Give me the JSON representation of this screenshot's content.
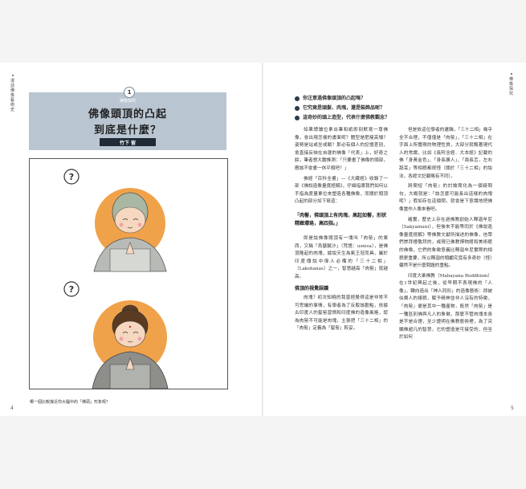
{
  "left_page": {
    "side_label": "漫話佛像藝術史",
    "page_number": "4",
    "chapter": {
      "number": "1",
      "tag": "佛像探究",
      "title_line1": "佛像頭頂的凸起",
      "title_line2": "到底是什麼？",
      "author": "竹下 留"
    },
    "caption": "哪一個比較接近你大腦中的「佛頭」形象呢？"
  },
  "right_page": {
    "side_label": "佛像探究",
    "page_number": "5",
    "bullets": [
      "你注意過佛像頭頂的凸起嗎？",
      "它究竟是頭髮、肉塊，還是裝飾品呢？",
      "這奇妙的頭上造型，代表什麼佛教觀念？"
    ],
    "col_a": {
      "p1": "如果請讀位拿出筆和紙即刻默寫一尊佛像，會出現怎樣的畫面呢？體型是肥瘦高矮？姿勢是站或坐或躺？那必有個人的記憶差別，會直接反映在自選的佛像「代表」上，好奇之餘，筆者想大膽推測：「只要畫了佛像的頭部，應該不會畫一休平頭吧？」",
      "p2": "佛經「百科全書」—《大藏經》收錄了一部《佛說造像量度經解》，仔細指導我們如何以手指為度量單位來塑造各種佛像，而關於頭頂凸起的部分如下寫道：",
      "pull": "「肉髻，佛頭頂上有肉塊，高起如髻，形狀精緻瓔珞，高四指。」",
      "p3": "即是說佛像頭頂有一塊叫「肉髻」的東西，又稱「烏瑟膩沙」（梵語：usnisa），是佛頂隆起的肉塊，據說天生為氣王冠而具，屬於印度傳說中偉人必備的「三十二相」（Lakshanas）之一，智慧越高「肉髻」就越高。",
      "subhead": "佛頂的視覺誤讀",
      "p4": "肉塊？初次知曉的我曾經覺得這是非常不可思議的事情，有學者為了反駁該觀點，依據古印度人的髮髻習慣和印度佛的造像風格，認為肉髻不可能是肉塊，主張把「三十二相」的「肉髻」定義為「髮髻」較妥。"
    },
    "col_b": {
      "p1": "但是依這位學者的邏輯，「三十二相」幾乎全不合理，不僅僅是「肉髻」，「三十二相」在字面上所體現的物理性質，大部分就甄著現代人的常識，比如《長阿含經．大本經》記載的佛「身黃金色」、「身長廣人」、「兩長舌，左右舐耳」等相貌都很怪（關於「三十二相」的說法，各經文記載略有不同）。",
      "note": "法，各經文記載略有不同）。",
      "p2": "將簡短『肉髻』的討論簡化為一個疑問句，大概就是：「該怎麼可能長出這樣的肉塊呢？」假如存在這個問，就會是下意識地把佛像當作人像來看吧。",
      "p3": "確實，歷史上存在過佛教創始人釋迦牟尼（Sakyamuni），但後來不能等同於《佛說造像量度經解》等佛教文獻所描述的佛像，信眾們崇拜禮敬拜的，或現已佛教博物館和美術館的佛像，它們的象徵意義比釋迦牟尼實際的相貌更重要，所以釋迦的頭顱究竟有多奇妙（怪）儼然不是什麼問題的重點。",
      "p4": "印度大乘佛教（Mahayana Buddhism）在1世紀興起之後，從早期不表現佛的「人像」，轉向造出「神人同形」的造像藝術：即被似費人的樣貌，賦予精神並非人沒有的特徵，「肉髻」便是其中一種產物，既然「肉髻」是一種區別佛與凡人的象徵，那麼不管肉塊本身是不是合理，至少證明在佛教藝術裡，為了突顯佛超凡的智慧，它的塑造是可接受的，但至於如何"
    }
  }
}
